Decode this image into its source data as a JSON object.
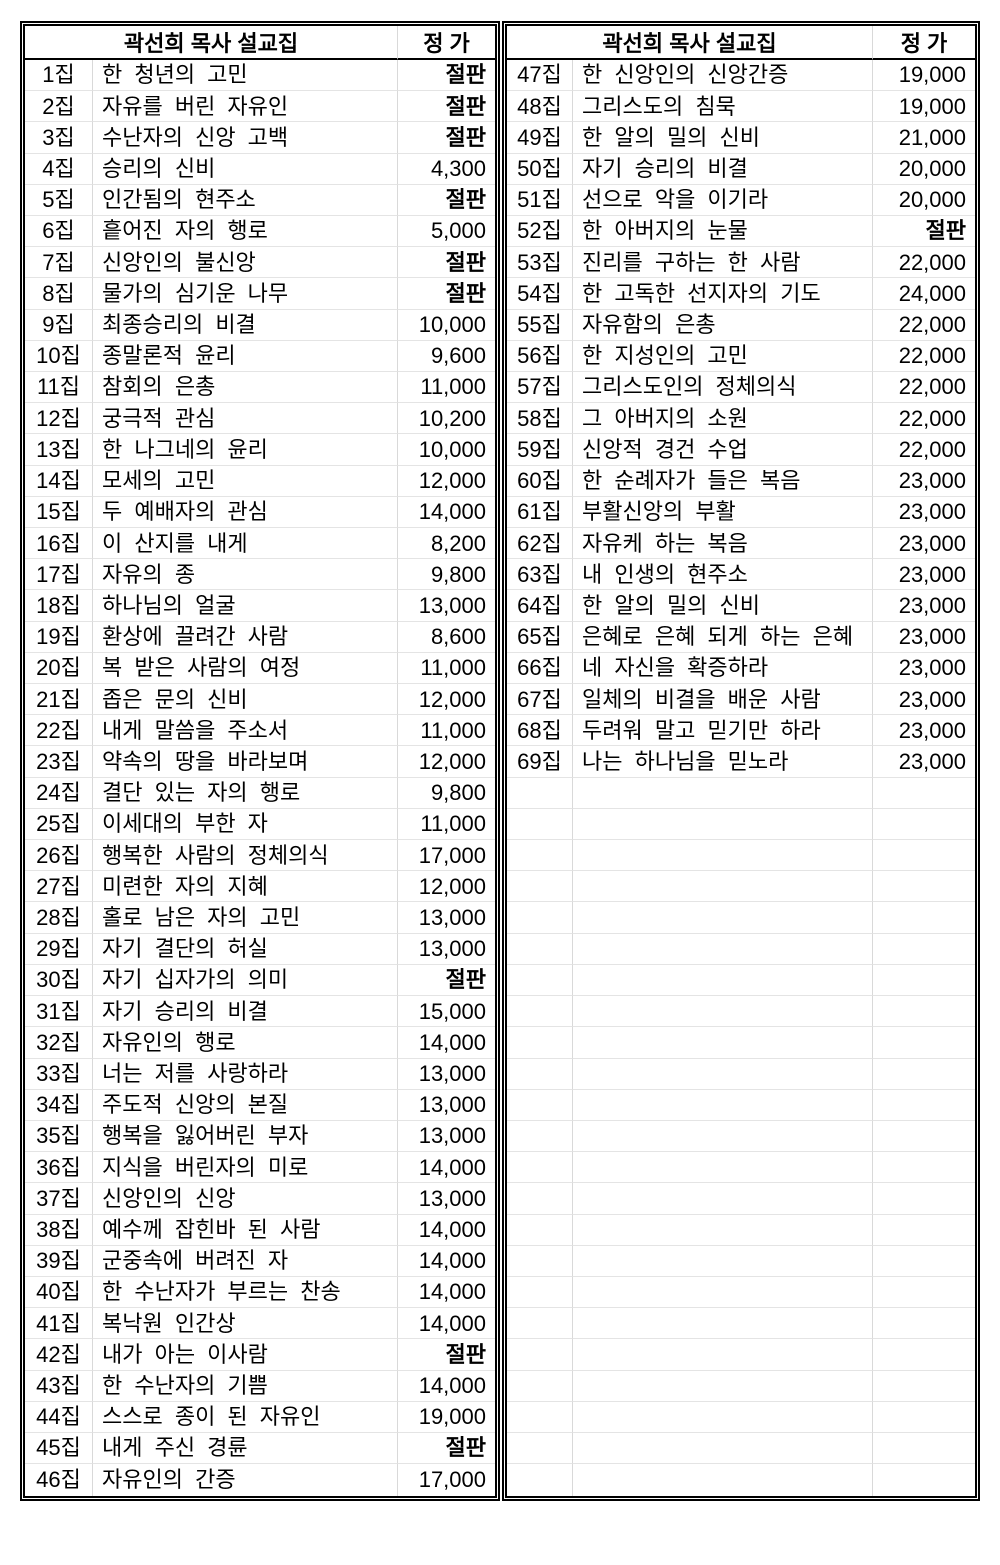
{
  "page": {
    "background": "#ffffff"
  },
  "colors": {
    "text": "#000000",
    "outer_border": "#000000",
    "grid_vertical": "#d9d9d9",
    "grid_horizontal": "#e4e4e4"
  },
  "soldout_label": "절판",
  "tables": [
    {
      "name": "volumes-1-46",
      "header": {
        "title": "곽선희 목사 설교집",
        "price": "정 가"
      },
      "rows": [
        {
          "no": "1집",
          "title": "한 청년의 고민",
          "price": "절판"
        },
        {
          "no": "2집",
          "title": "자유를 버린 자유인",
          "price": "절판"
        },
        {
          "no": "3집",
          "title": "수난자의 신앙 고백",
          "price": "절판"
        },
        {
          "no": "4집",
          "title": "승리의 신비",
          "price": "4,300"
        },
        {
          "no": "5집",
          "title": "인간됨의 현주소",
          "price": "절판"
        },
        {
          "no": "6집",
          "title": "흩어진 자의 행로",
          "price": "5,000"
        },
        {
          "no": "7집",
          "title": "신앙인의 불신앙",
          "price": "절판"
        },
        {
          "no": "8집",
          "title": "물가의 심기운 나무",
          "price": "절판"
        },
        {
          "no": "9집",
          "title": "최종승리의 비결",
          "price": "10,000"
        },
        {
          "no": "10집",
          "title": "종말론적 윤리",
          "price": "9,600"
        },
        {
          "no": "11집",
          "title": "참회의 은총",
          "price": "11,000"
        },
        {
          "no": "12집",
          "title": "궁극적 관심",
          "price": "10,200"
        },
        {
          "no": "13집",
          "title": "한 나그네의 윤리",
          "price": "10,000"
        },
        {
          "no": "14집",
          "title": "모세의 고민",
          "price": "12,000"
        },
        {
          "no": "15집",
          "title": "두 예배자의 관심",
          "price": "14,000"
        },
        {
          "no": "16집",
          "title": "이 산지를 내게",
          "price": "8,200"
        },
        {
          "no": "17집",
          "title": "자유의 종",
          "price": "9,800"
        },
        {
          "no": "18집",
          "title": "하나님의 얼굴",
          "price": "13,000"
        },
        {
          "no": "19집",
          "title": "환상에 끌려간 사람",
          "price": "8,600"
        },
        {
          "no": "20집",
          "title": "복 받은 사람의 여정",
          "price": "11,000"
        },
        {
          "no": "21집",
          "title": "좁은 문의 신비",
          "price": "12,000"
        },
        {
          "no": "22집",
          "title": "내게 말씀을 주소서",
          "price": "11,000"
        },
        {
          "no": "23집",
          "title": "약속의 땅을 바라보며",
          "price": "12,000"
        },
        {
          "no": "24집",
          "title": "결단 있는 자의 행로",
          "price": "9,800"
        },
        {
          "no": "25집",
          "title": "이세대의 부한 자",
          "price": "11,000"
        },
        {
          "no": "26집",
          "title": "행복한 사람의 정체의식",
          "price": "17,000"
        },
        {
          "no": "27집",
          "title": "미련한 자의 지혜",
          "price": "12,000"
        },
        {
          "no": "28집",
          "title": "홀로 남은 자의 고민",
          "price": "13,000"
        },
        {
          "no": "29집",
          "title": "자기 결단의 허실",
          "price": "13,000"
        },
        {
          "no": "30집",
          "title": "자기 십자가의 의미",
          "price": "절판"
        },
        {
          "no": "31집",
          "title": "자기 승리의 비결",
          "price": "15,000"
        },
        {
          "no": "32집",
          "title": "자유인의 행로",
          "price": "14,000"
        },
        {
          "no": "33집",
          "title": "너는 저를 사랑하라",
          "price": "13,000"
        },
        {
          "no": "34집",
          "title": "주도적 신앙의 본질",
          "price": "13,000"
        },
        {
          "no": "35집",
          "title": "행복을 잃어버린 부자",
          "price": "13,000"
        },
        {
          "no": "36집",
          "title": "지식을 버린자의 미로",
          "price": "14,000"
        },
        {
          "no": "37집",
          "title": "신앙인의 신앙",
          "price": "13,000"
        },
        {
          "no": "38집",
          "title": "예수께 잡힌바 된 사람",
          "price": "14,000"
        },
        {
          "no": "39집",
          "title": "군중속에 버려진 자",
          "price": "14,000"
        },
        {
          "no": "40집",
          "title": "한 수난자가 부르는 찬송",
          "price": "14,000"
        },
        {
          "no": "41집",
          "title": "복낙원 인간상",
          "price": "14,000"
        },
        {
          "no": "42집",
          "title": "내가 아는 이사람",
          "price": "절판"
        },
        {
          "no": "43집",
          "title": "한 수난자의 기쁨",
          "price": "14,000"
        },
        {
          "no": "44집",
          "title": "스스로 종이 된 자유인",
          "price": "19,000"
        },
        {
          "no": "45집",
          "title": "내게 주신 경륜",
          "price": "절판"
        },
        {
          "no": "46집",
          "title": "자유인의 간증",
          "price": "17,000"
        }
      ],
      "empty_rows": 0
    },
    {
      "name": "volumes-47-69",
      "header": {
        "title": "곽선희 목사 설교집",
        "price": "정 가"
      },
      "rows": [
        {
          "no": "47집",
          "title": "한 신앙인의 신앙간증",
          "price": "19,000"
        },
        {
          "no": "48집",
          "title": "그리스도의 침묵",
          "price": "19,000"
        },
        {
          "no": "49집",
          "title": "한 알의 밀의 신비",
          "price": "21,000"
        },
        {
          "no": "50집",
          "title": "자기 승리의 비결",
          "price": "20,000"
        },
        {
          "no": "51집",
          "title": "선으로 악을 이기라",
          "price": "20,000"
        },
        {
          "no": "52집",
          "title": "한 아버지의 눈물",
          "price": "절판"
        },
        {
          "no": "53집",
          "title": "진리를 구하는 한 사람",
          "price": "22,000"
        },
        {
          "no": "54집",
          "title": "한 고독한 선지자의 기도",
          "price": "24,000"
        },
        {
          "no": "55집",
          "title": "자유함의 은총",
          "price": "22,000"
        },
        {
          "no": "56집",
          "title": "한 지성인의 고민",
          "price": "22,000"
        },
        {
          "no": "57집",
          "title": "그리스도인의 정체의식",
          "price": "22,000"
        },
        {
          "no": "58집",
          "title": "그 아버지의 소원",
          "price": "22,000"
        },
        {
          "no": "59집",
          "title": "신앙적 경건 수업",
          "price": "22,000"
        },
        {
          "no": "60집",
          "title": "한 순례자가 들은 복음",
          "price": "23,000"
        },
        {
          "no": "61집",
          "title": "부활신앙의 부활",
          "price": "23,000"
        },
        {
          "no": "62집",
          "title": "자유케 하는 복음",
          "price": "23,000"
        },
        {
          "no": "63집",
          "title": "내 인생의 현주소",
          "price": "23,000"
        },
        {
          "no": "64집",
          "title": "한 알의 밀의 신비",
          "price": "23,000"
        },
        {
          "no": "65집",
          "title": "은혜로 은혜 되게 하는 은혜",
          "price": "23,000"
        },
        {
          "no": "66집",
          "title": "네 자신을 확증하라",
          "price": "23,000"
        },
        {
          "no": "67집",
          "title": "일체의 비결을 배운 사람",
          "price": "23,000"
        },
        {
          "no": "68집",
          "title": "두려워 말고 믿기만 하라",
          "price": "23,000"
        },
        {
          "no": "69집",
          "title": "나는 하나님을 믿노라",
          "price": "23,000"
        }
      ],
      "empty_rows": 23
    }
  ]
}
